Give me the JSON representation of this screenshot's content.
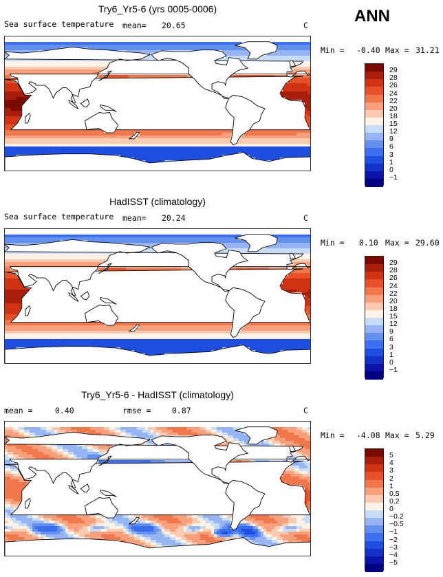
{
  "season": "ANN",
  "panels": [
    {
      "title": "Try6_Yr5-6 (yrs 0005-0006)",
      "variable": "Sea surface temperature",
      "mean_label": "mean=",
      "mean_value": "20.65",
      "units": "C",
      "range_text": {
        "min_label": "Min =",
        "min_value": "-0.40",
        "max_label": "Max =",
        "max_value": "31.21"
      },
      "field": "model"
    },
    {
      "title": "HadISST (climatology)",
      "variable": "Sea surface temperature",
      "mean_label": "mean=",
      "mean_value": "20.24",
      "units": "C",
      "range_text": {
        "min_label": "Min =",
        "min_value": "0.10",
        "max_label": "Max =",
        "max_value": "29.60"
      },
      "field": "obs"
    },
    {
      "title": "Try6_Yr5-6 - HadISST (climatology)",
      "mean_label": "mean =",
      "mean_value": "0.40",
      "rmse_label": "rmse =",
      "rmse_value": "0.87",
      "units": "C",
      "range_text": {
        "min_label": "Min =",
        "min_value": "-4.08",
        "max_label": "Max =",
        "max_value": "5.29"
      },
      "field": "diff"
    }
  ],
  "chart_data": [
    {
      "type": "heatmap",
      "title": "Try6_Yr5-6 (yrs 0005-0006)",
      "variable": "Sea surface temperature",
      "units": "C",
      "mean": 20.65,
      "min": -0.4,
      "max": 31.21,
      "colorbar_levels": [
        29,
        28,
        26,
        24,
        22,
        20,
        18,
        15,
        12,
        9,
        6,
        3,
        1,
        0,
        -1
      ]
    },
    {
      "type": "heatmap",
      "title": "HadISST (climatology)",
      "variable": "Sea surface temperature",
      "units": "C",
      "mean": 20.24,
      "min": 0.1,
      "max": 29.6,
      "colorbar_levels": [
        29,
        28,
        26,
        24,
        22,
        20,
        18,
        15,
        12,
        9,
        6,
        3,
        1,
        0,
        -1
      ]
    },
    {
      "type": "heatmap",
      "title": "Try6_Yr5-6 - HadISST (climatology)",
      "units": "C",
      "mean": 0.4,
      "rmse": 0.87,
      "min": -4.08,
      "max": 5.29,
      "colorbar_levels": [
        5,
        4,
        3,
        2,
        1,
        0.5,
        0.2,
        0,
        -0.2,
        -0.5,
        -1,
        -2,
        -3,
        -4,
        -5
      ]
    }
  ],
  "colorbars": {
    "sst_labels": [
      "29",
      "28",
      "26",
      "24",
      "22",
      "20",
      "18",
      "15",
      "12",
      "9",
      "6",
      "3",
      "1",
      "0",
      "−1"
    ],
    "diff_labels": [
      "5",
      "4",
      "3",
      "2",
      "1",
      "0.5",
      "0.2",
      "0",
      "−0.2",
      "−0.5",
      "−1",
      "−2",
      "−3",
      "−4",
      "−5"
    ],
    "colors": [
      "#000080",
      "#0a14a8",
      "#1432c8",
      "#1e4ee0",
      "#3c6ef0",
      "#6490f0",
      "#96b4f4",
      "#c8dcf8",
      "#fff2e6",
      "#fccab0",
      "#f8a07c",
      "#f0784c",
      "#e85028",
      "#d03214",
      "#a81e0a",
      "#7a0a00"
    ]
  }
}
